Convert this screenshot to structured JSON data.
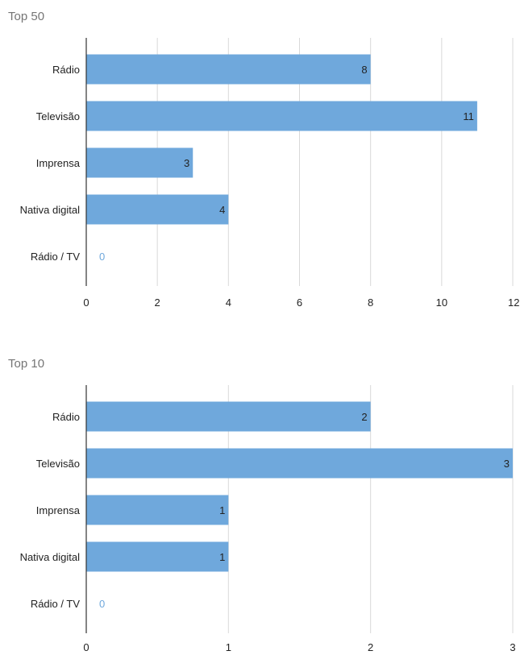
{
  "chart_data": [
    {
      "type": "bar",
      "orientation": "horizontal",
      "title": "Top 50",
      "categories": [
        "Rádio",
        "Televisão",
        "Imprensa",
        "Nativa digital",
        "Rádio / TV"
      ],
      "values": [
        8,
        11,
        3,
        4,
        0
      ],
      "data_labels": [
        "8",
        "11",
        "3",
        "4",
        "0"
      ],
      "xlim": [
        0,
        12
      ],
      "x_ticks": [
        0,
        2,
        4,
        6,
        8,
        10,
        12
      ],
      "x_tick_labels": [
        "0",
        "2",
        "4",
        "6",
        "8",
        "10",
        "12"
      ],
      "grid": true,
      "legend": "none",
      "bar_color": "#6fa8dc"
    },
    {
      "type": "bar",
      "orientation": "horizontal",
      "title": "Top 10",
      "categories": [
        "Rádio",
        "Televisão",
        "Imprensa",
        "Nativa digital",
        "Rádio / TV"
      ],
      "values": [
        2,
        3,
        1,
        1,
        0
      ],
      "data_labels": [
        "2",
        "3",
        "1",
        "1",
        "0"
      ],
      "xlim": [
        0,
        3
      ],
      "x_ticks": [
        0,
        1,
        2,
        3
      ],
      "x_tick_labels": [
        "0",
        "1",
        "2",
        "3"
      ],
      "grid": true,
      "legend": "none",
      "bar_color": "#6fa8dc"
    }
  ]
}
